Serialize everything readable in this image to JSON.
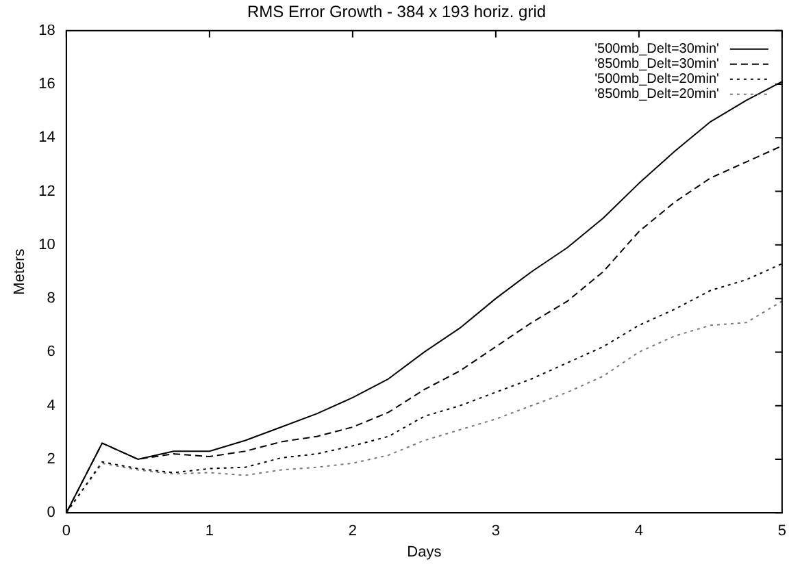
{
  "chart_data": {
    "type": "line",
    "title": "RMS Error Growth - 384 x 193 horiz. grid",
    "xlabel": "Days",
    "ylabel": "Meters",
    "x": [
      0,
      0.25,
      0.5,
      0.75,
      1,
      1.25,
      1.5,
      1.75,
      2,
      2.25,
      2.5,
      2.75,
      3,
      3.25,
      3.5,
      3.75,
      4,
      4.25,
      4.5,
      4.75,
      5
    ],
    "series": [
      {
        "name": "'500mb_Delt=30min'",
        "color": "#000000",
        "line_style": "solid",
        "values": [
          0,
          2.6,
          2.0,
          2.3,
          2.3,
          2.7,
          3.2,
          3.7,
          4.3,
          5.0,
          6.0,
          6.9,
          8.0,
          9.0,
          9.9,
          11.0,
          12.3,
          13.5,
          14.6,
          15.4,
          16.1
        ]
      },
      {
        "name": "'850mb_Delt=30min'",
        "color": "#000000",
        "line_style": "dashed",
        "values": [
          0,
          2.6,
          2.0,
          2.2,
          2.1,
          2.3,
          2.65,
          2.85,
          3.2,
          3.75,
          4.6,
          5.3,
          6.2,
          7.1,
          7.9,
          9.0,
          10.5,
          11.6,
          12.5,
          13.1,
          13.7
        ]
      },
      {
        "name": "'500mb_Delt=20min'",
        "color": "#000000",
        "line_style": "dotted",
        "values": [
          0,
          1.9,
          1.65,
          1.5,
          1.65,
          1.7,
          2.05,
          2.2,
          2.5,
          2.85,
          3.6,
          4.0,
          4.5,
          5.0,
          5.6,
          6.2,
          7.0,
          7.6,
          8.3,
          8.7,
          9.3
        ]
      },
      {
        "name": "'850mb_Delt=20min'",
        "color": "#777777",
        "line_style": "dotted",
        "values": [
          0,
          1.85,
          1.6,
          1.45,
          1.5,
          1.4,
          1.6,
          1.7,
          1.85,
          2.15,
          2.7,
          3.1,
          3.5,
          4.0,
          4.5,
          5.1,
          6.0,
          6.6,
          7.0,
          7.1,
          7.9
        ]
      }
    ],
    "xlim": [
      0,
      5
    ],
    "xticks": [
      0,
      1,
      2,
      3,
      4,
      5
    ],
    "ylim": [
      0,
      18
    ],
    "yticks": [
      0,
      2,
      4,
      6,
      8,
      10,
      12,
      14,
      16,
      18
    ],
    "grid": false,
    "legend": "top right",
    "marker": "none"
  }
}
